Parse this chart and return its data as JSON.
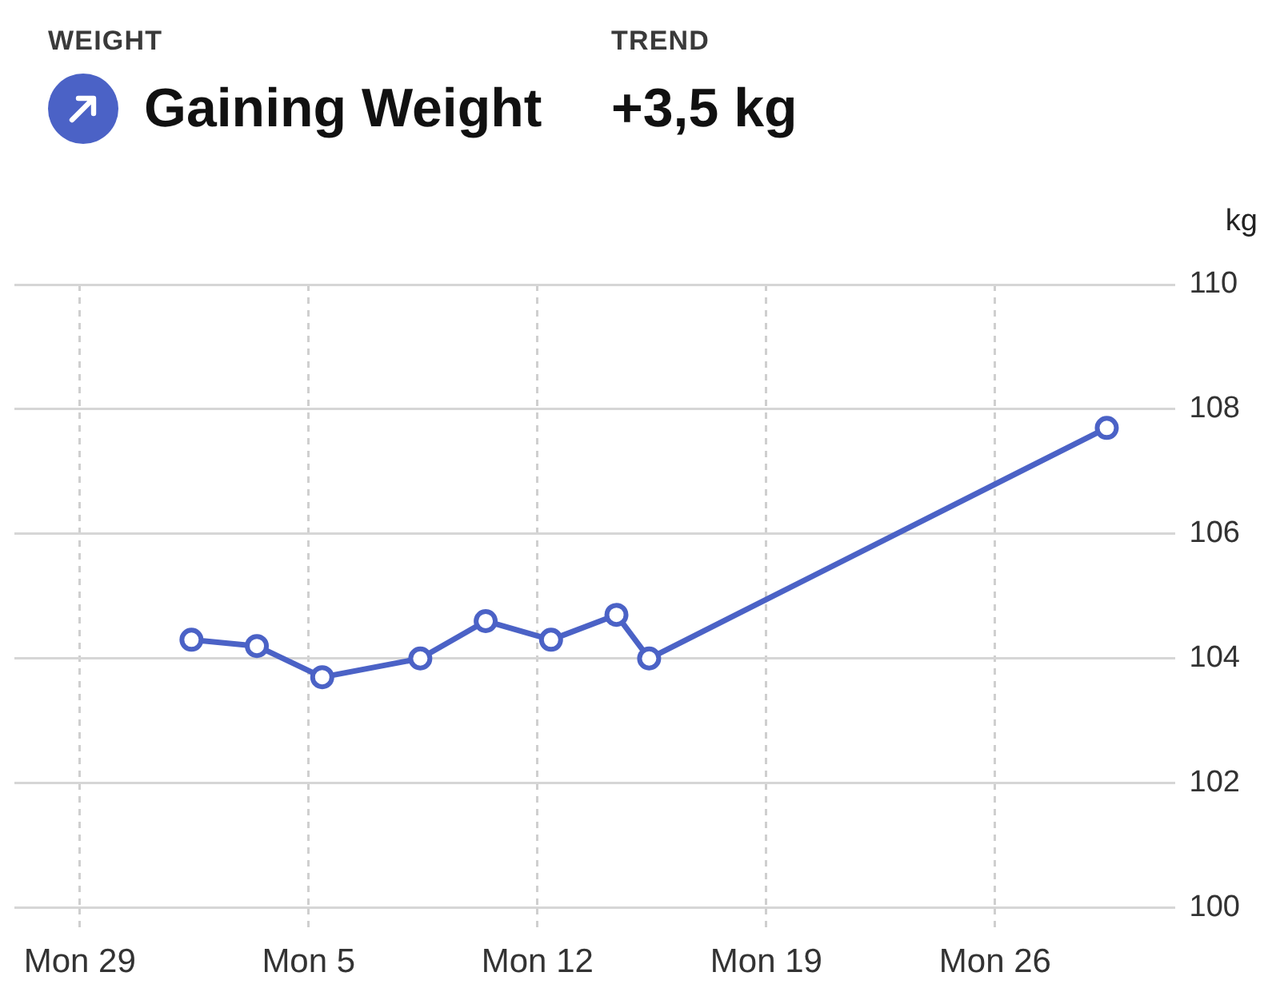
{
  "chart_data": {
    "type": "line",
    "annotations": [
      "WEIGHT",
      "Gaining Weight",
      "TREND",
      "+3,5 kg"
    ],
    "ylabel": "kg",
    "x": [
      "--08-01T10:00",
      "--08-03T10:00",
      "--08-05T10:00",
      "--08-08T10:00",
      "--08-10T10:00",
      "--08-12T10:00",
      "--08-14T10:00",
      "--08-15T10:00",
      "--08-29T10:00"
    ],
    "series": [
      {
        "color": "#4b62c6",
        "values": [
          104.3,
          104.2,
          103.7,
          104.0,
          104.6,
          104.3,
          104.7,
          104.0,
          107.7
        ]
      }
    ],
    "xlim": [
      "--07-27",
      "--08-31T12:00"
    ],
    "xticks": [
      {
        "value": "--07-29",
        "label": "Mon 29"
      },
      {
        "value": "--08-05",
        "label": "Mon 5"
      },
      {
        "value": "--08-12",
        "label": "Mon 12"
      },
      {
        "value": "--08-19",
        "label": "Mon 19"
      },
      {
        "value": "--08-26",
        "label": "Mon 26"
      }
    ],
    "ylim": [
      100,
      110
    ],
    "yticks": [
      100,
      102,
      104,
      106,
      108,
      110
    ],
    "grid": true,
    "marker": "circle",
    "line_style": "solid"
  }
}
